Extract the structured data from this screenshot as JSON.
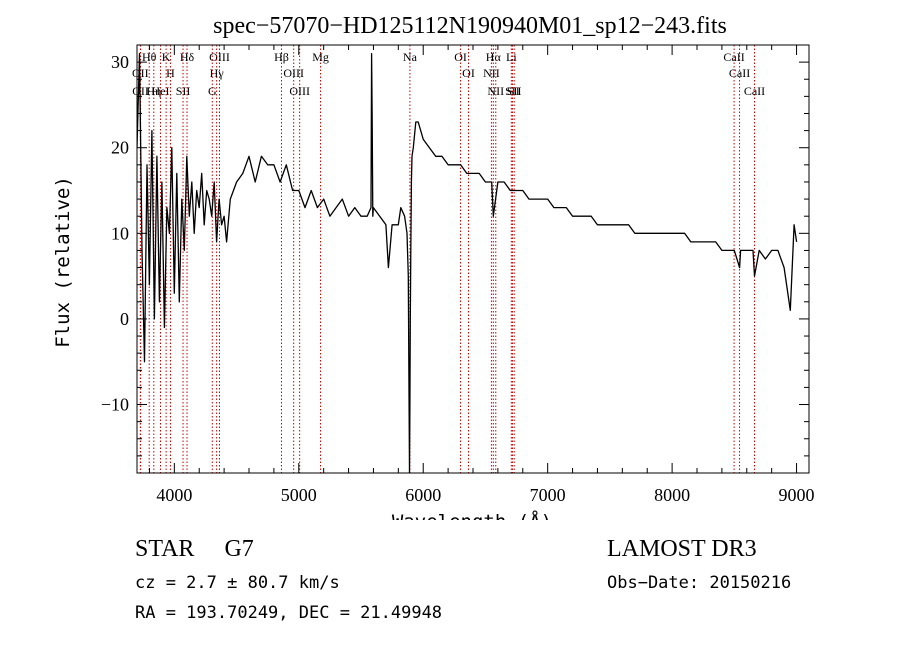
{
  "chart_data": {
    "type": "line",
    "title": "spec−57070−HD125112N190940M01_sp12−243.fits",
    "xlabel": "Wavelength (Å)",
    "ylabel": "Flux (relative)",
    "xlim": [
      3700,
      9100
    ],
    "ylim": [
      -18,
      32
    ],
    "xticks": [
      4000,
      5000,
      6000,
      7000,
      8000,
      9000
    ],
    "xtick_labels": [
      "4000",
      "5000",
      "6000",
      "7000",
      "8000",
      "9000"
    ],
    "yticks": [
      -10,
      0,
      10,
      20,
      30
    ],
    "ytick_labels": [
      "−10",
      "0",
      "10",
      "20",
      "30"
    ],
    "grid": false,
    "series": [
      {
        "x": [
          3700,
          3720,
          3740,
          3760,
          3780,
          3800,
          3820,
          3840,
          3860,
          3880,
          3900,
          3920,
          3940,
          3960,
          3980,
          4000,
          4020,
          4040,
          4060,
          4080,
          4100,
          4120,
          4140,
          4160,
          4180,
          4200,
          4220,
          4240,
          4260,
          4280,
          4300,
          4320,
          4340,
          4360,
          4380,
          4400,
          4420,
          4450,
          4500,
          4550,
          4600,
          4650,
          4700,
          4750,
          4800,
          4850,
          4900,
          4950,
          5000,
          5050,
          5100,
          5150,
          5200,
          5250,
          5300,
          5350,
          5400,
          5450,
          5500,
          5550,
          5580,
          5585,
          5590,
          5595,
          5600,
          5650,
          5700,
          5720,
          5750,
          5800,
          5820,
          5850,
          5870,
          5880,
          5890,
          5893,
          5896,
          5900,
          5905,
          5910,
          5920,
          5940,
          5960,
          5980,
          6000,
          6050,
          6100,
          6150,
          6200,
          6250,
          6300,
          6350,
          6400,
          6450,
          6500,
          6550,
          6563,
          6600,
          6650,
          6700,
          6750,
          6800,
          6850,
          6900,
          6950,
          7000,
          7050,
          7100,
          7150,
          7200,
          7250,
          7300,
          7350,
          7400,
          7450,
          7500,
          7550,
          7600,
          7650,
          7700,
          7750,
          7800,
          7850,
          7900,
          7950,
          8000,
          8050,
          8100,
          8150,
          8200,
          8250,
          8300,
          8350,
          8400,
          8450,
          8500,
          8542,
          8550,
          8600,
          8650,
          8662,
          8700,
          8750,
          8800,
          8850,
          8900,
          8950,
          8980,
          9000
        ],
        "y": [
          20,
          31,
          8,
          -5,
          18,
          4,
          22,
          0,
          19,
          2,
          16,
          -1,
          13,
          10,
          20,
          3,
          17,
          2,
          14,
          8,
          19,
          12,
          16,
          10,
          15,
          13,
          17,
          11,
          15,
          14,
          12,
          16,
          9,
          14,
          11,
          12,
          9,
          14,
          16,
          17,
          19,
          16,
          19,
          18,
          18,
          16,
          18,
          15,
          15,
          13,
          15,
          13,
          14,
          12,
          13,
          14,
          12,
          13,
          12,
          12,
          13,
          31,
          23,
          12,
          13,
          12,
          11,
          6,
          11,
          11,
          13,
          12,
          10,
          5,
          -18,
          -10,
          0,
          8,
          16,
          19,
          20,
          23,
          23,
          22,
          21,
          20,
          19,
          19,
          18,
          18,
          18,
          17,
          17,
          17,
          16,
          16,
          12,
          16,
          16,
          15,
          15,
          15,
          14,
          14,
          14,
          14,
          13,
          13,
          13,
          12,
          12,
          12,
          12,
          11,
          11,
          11,
          11,
          11,
          11,
          10,
          10,
          10,
          10,
          10,
          10,
          10,
          10,
          10,
          9,
          9,
          9,
          9,
          9,
          8,
          8,
          8,
          6,
          8,
          8,
          8,
          5,
          8,
          7,
          8,
          8,
          6,
          1,
          11,
          9
        ]
      }
    ],
    "lines": [
      {
        "label": "Hθ",
        "x": 3798
      },
      {
        "label": "OII",
        "x": 3727
      },
      {
        "label": "OII",
        "x": 3729
      },
      {
        "label": "Hη",
        "x": 3835
      },
      {
        "label": "HeI",
        "x": 3889
      },
      {
        "label": "K",
        "x": 3934
      },
      {
        "label": "H",
        "x": 3969
      },
      {
        "label": "SII",
        "x": 4070
      },
      {
        "label": "Hδ",
        "x": 4102
      },
      {
        "label": "OIII",
        "x": 4363
      },
      {
        "label": "Hγ",
        "x": 4340
      },
      {
        "label": "G",
        "x": 4305
      },
      {
        "label": "Hβ",
        "x": 4861
      },
      {
        "label": "OIII",
        "x": 4959
      },
      {
        "label": "OIII",
        "x": 5007
      },
      {
        "label": "Mg",
        "x": 5175
      },
      {
        "label": "Na",
        "x": 5893
      },
      {
        "label": "OI",
        "x": 6300
      },
      {
        "label": "OI",
        "x": 6364
      },
      {
        "label": "Hα",
        "x": 6563
      },
      {
        "label": "NII",
        "x": 6548
      },
      {
        "label": "NII",
        "x": 6583
      },
      {
        "label": "SII",
        "x": 6717
      },
      {
        "label": "SII",
        "x": 6731
      },
      {
        "label": "Li",
        "x": 6708
      },
      {
        "label": "CaII",
        "x": 8498
      },
      {
        "label": "CaII",
        "x": 8542
      },
      {
        "label": "CaII",
        "x": 8662
      }
    ]
  },
  "info": {
    "class": "STAR",
    "subclass": "G7",
    "survey": "LAMOST DR3",
    "cz": "cz = 2.7 ± 80.7 km/s",
    "obs_date": "Obs−Date: 20150216",
    "coords": "RA = 193.70249, DEC =  21.49948"
  },
  "colors": {
    "axes": "#000000",
    "spectrum": "#000000",
    "line_markers": "#cc0000"
  }
}
